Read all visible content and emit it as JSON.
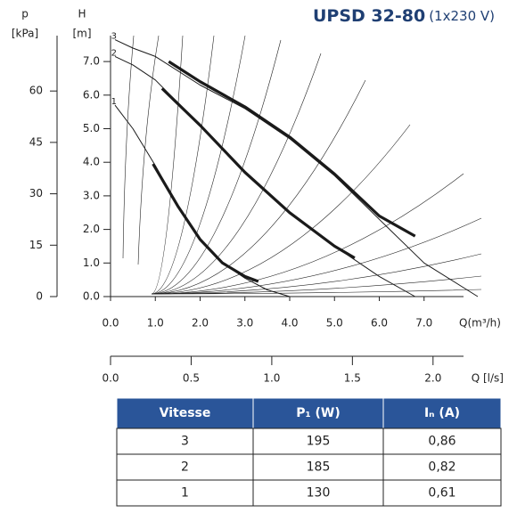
{
  "chart_data": {
    "type": "line",
    "title": "UPSD 32-80",
    "subtitle": "(1x230 V)",
    "y_label_unit": "[m]",
    "y_label": "H",
    "y2_label": "p",
    "y2_label_unit": "[kPa]",
    "x_label": "Q(m³/h)",
    "x2_label": "Q [l/s]",
    "xlim": [
      0,
      8
    ],
    "ylim": [
      0,
      8
    ],
    "y2lim": [
      0,
      78.4
    ],
    "x2lim": [
      0,
      2.2222
    ],
    "xticks": [
      {
        "value": 0,
        "label": "0.0"
      },
      {
        "value": 1,
        "label": "1.0"
      },
      {
        "value": 2,
        "label": "2.0"
      },
      {
        "value": 3,
        "label": "3.0"
      },
      {
        "value": 4,
        "label": "4.0"
      },
      {
        "value": 5,
        "label": "5.0"
      },
      {
        "value": 6,
        "label": "6.0"
      },
      {
        "value": 7,
        "label": "7.0"
      }
    ],
    "yticks": [
      {
        "value": 0,
        "label": "0.0"
      },
      {
        "value": 1,
        "label": "1.0"
      },
      {
        "value": 2,
        "label": "2.0"
      },
      {
        "value": 3,
        "label": "3.0"
      },
      {
        "value": 4,
        "label": "4.0"
      },
      {
        "value": 5,
        "label": "5.0"
      },
      {
        "value": 6,
        "label": "6.0"
      },
      {
        "value": 7,
        "label": "7.0"
      }
    ],
    "y2ticks": [
      0,
      15,
      30,
      45,
      60
    ],
    "x2ticks": [
      {
        "value": 0,
        "label": "0.0"
      },
      0.5,
      {
        "value": 1,
        "label": "1.0"
      },
      1.5,
      {
        "value": 2,
        "label": "2.0"
      }
    ],
    "series": [
      {
        "name": "3",
        "color": "#1a1a1a",
        "width": 1,
        "x": [
          0.1,
          0.5,
          1.0,
          2.0,
          3.0,
          4.0,
          5.0,
          6.0,
          7.0,
          8.2
        ],
        "values": [
          7.65,
          7.4,
          7.15,
          6.3,
          5.6,
          4.7,
          3.6,
          2.3,
          1.0,
          0
        ]
      },
      {
        "name": "2",
        "color": "#1a1a1a",
        "width": 1,
        "x": [
          0.1,
          0.5,
          1.0,
          2.0,
          3.0,
          4.0,
          5.0,
          6.0,
          6.8
        ],
        "values": [
          7.15,
          6.9,
          6.45,
          5.1,
          3.7,
          2.5,
          1.5,
          0.6,
          0
        ]
      },
      {
        "name": "1",
        "color": "#1a1a1a",
        "width": 1,
        "x": [
          0.1,
          0.5,
          1.0,
          1.5,
          2.0,
          2.5,
          3.0,
          3.5,
          4.0
        ],
        "values": [
          5.7,
          5.0,
          3.9,
          2.7,
          1.7,
          1.0,
          0.55,
          0.2,
          0
        ]
      },
      {
        "color": "#1a1a1a",
        "width": 3.2,
        "x": [
          1.3,
          2.0,
          3.0,
          4.0,
          5.0,
          6.0,
          6.8
        ],
        "values": [
          7.0,
          6.4,
          5.65,
          4.75,
          3.65,
          2.4,
          1.8
        ]
      },
      {
        "color": "#1a1a1a",
        "width": 3.2,
        "x": [
          1.15,
          2.0,
          3.0,
          4.0,
          5.0,
          5.45
        ],
        "values": [
          6.2,
          5.1,
          3.7,
          2.5,
          1.5,
          1.15
        ]
      },
      {
        "color": "#1a1a1a",
        "width": 3.2,
        "x": [
          0.95,
          1.5,
          2.0,
          2.5,
          3.0,
          3.3
        ],
        "values": [
          3.95,
          2.7,
          1.7,
          1.0,
          0.6,
          0.45
        ]
      }
    ]
  },
  "table": {
    "header": [
      "Vitesse",
      "P₁ (W)",
      "Iₙ (A)"
    ],
    "rows": [
      [
        "3",
        "195",
        "0,86"
      ],
      [
        "2",
        "185",
        "0,82"
      ],
      [
        "1",
        "130",
        "0,61"
      ]
    ]
  }
}
